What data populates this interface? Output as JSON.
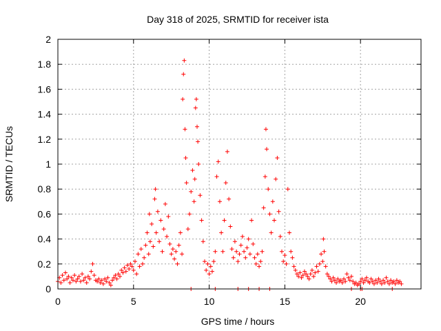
{
  "colors": {
    "series": "#ff0000",
    "grid": "#a0a0a0",
    "axis": "#000000",
    "background": "#ffffff"
  },
  "chart_data": {
    "type": "scatter",
    "title": "Day 318 of 2025, SRMTID for receiver ista",
    "xlabel": "GPS time / hours",
    "ylabel": "SRMTID / TECUs",
    "xlim": [
      0,
      24
    ],
    "ylim": [
      0,
      2
    ],
    "xticks": [
      0,
      5,
      10,
      15,
      20
    ],
    "xtick_labels": [
      "0",
      "5",
      "10",
      "15",
      "20"
    ],
    "yticks": [
      0,
      0.2,
      0.4,
      0.6,
      0.8,
      1,
      1.2,
      1.4,
      1.6,
      1.8,
      2
    ],
    "ytick_labels": [
      "0",
      "0.2",
      "0.4",
      "0.6",
      "0.8",
      "1",
      "1.2",
      "1.4",
      "1.6",
      "1.8",
      "2"
    ],
    "grid": true,
    "marker": "plus",
    "series": [
      {
        "name": "SRMTID",
        "points": [
          [
            0.0,
            0.06
          ],
          [
            0.1,
            0.09
          ],
          [
            0.2,
            0.05
          ],
          [
            0.3,
            0.11
          ],
          [
            0.4,
            0.07
          ],
          [
            0.5,
            0.13
          ],
          [
            0.6,
            0.08
          ],
          [
            0.7,
            0.1
          ],
          [
            0.8,
            0.05
          ],
          [
            0.9,
            0.09
          ],
          [
            1.0,
            0.07
          ],
          [
            1.1,
            0.11
          ],
          [
            1.2,
            0.06
          ],
          [
            1.3,
            0.08
          ],
          [
            1.4,
            0.1
          ],
          [
            1.5,
            0.06
          ],
          [
            1.6,
            0.12
          ],
          [
            1.7,
            0.07
          ],
          [
            1.8,
            0.09
          ],
          [
            1.9,
            0.05
          ],
          [
            2.0,
            0.1
          ],
          [
            2.1,
            0.08
          ],
          [
            2.2,
            0.14
          ],
          [
            2.3,
            0.2
          ],
          [
            2.4,
            0.11
          ],
          [
            2.5,
            0.07
          ],
          [
            2.6,
            0.06
          ],
          [
            2.7,
            0.08
          ],
          [
            2.8,
            0.05
          ],
          [
            2.9,
            0.07
          ],
          [
            3.0,
            0.04
          ],
          [
            3.1,
            0.08
          ],
          [
            3.2,
            0.06
          ],
          [
            3.3,
            0.09
          ],
          [
            3.4,
            0.05
          ],
          [
            3.5,
            0.03
          ],
          [
            3.6,
            0.07
          ],
          [
            3.7,
            0.09
          ],
          [
            3.8,
            0.11
          ],
          [
            3.9,
            0.08
          ],
          [
            4.0,
            0.12
          ],
          [
            4.1,
            0.1
          ],
          [
            4.2,
            0.15
          ],
          [
            4.3,
            0.13
          ],
          [
            4.4,
            0.17
          ],
          [
            4.5,
            0.14
          ],
          [
            4.6,
            0.19
          ],
          [
            4.7,
            0.16
          ],
          [
            4.8,
            0.2
          ],
          [
            4.9,
            0.18
          ],
          [
            5.0,
            0.15
          ],
          [
            5.1,
            0.22
          ],
          [
            5.2,
            0.12
          ],
          [
            5.3,
            0.28
          ],
          [
            5.4,
            0.18
          ],
          [
            5.5,
            0.32
          ],
          [
            5.6,
            0.2
          ],
          [
            5.7,
            0.25
          ],
          [
            5.8,
            0.35
          ],
          [
            5.9,
            0.45
          ],
          [
            6.0,
            0.28
          ],
          [
            6.05,
            0.6
          ],
          [
            6.1,
            0.38
          ],
          [
            6.2,
            0.52
          ],
          [
            6.3,
            0.34
          ],
          [
            6.4,
            0.72
          ],
          [
            6.45,
            0.8
          ],
          [
            6.5,
            0.45
          ],
          [
            6.6,
            0.62
          ],
          [
            6.7,
            0.38
          ],
          [
            6.8,
            0.55
          ],
          [
            6.9,
            0.3
          ],
          [
            7.0,
            0.48
          ],
          [
            7.1,
            0.68
          ],
          [
            7.2,
            0.42
          ],
          [
            7.3,
            0.58
          ],
          [
            7.4,
            0.36
          ],
          [
            7.5,
            0.28
          ],
          [
            7.6,
            0.32
          ],
          [
            7.7,
            0.24
          ],
          [
            7.8,
            0.3
          ],
          [
            7.9,
            0.2
          ],
          [
            8.0,
            0.35
          ],
          [
            8.1,
            0.45
          ],
          [
            8.2,
            0.28
          ],
          [
            8.25,
            1.52
          ],
          [
            8.3,
            1.72
          ],
          [
            8.35,
            1.83
          ],
          [
            8.4,
            1.28
          ],
          [
            8.45,
            1.05
          ],
          [
            8.5,
            0.85
          ],
          [
            8.6,
            0.48
          ],
          [
            8.7,
            0.6
          ],
          [
            8.8,
            0.78
          ],
          [
            8.9,
            0.95
          ],
          [
            9.0,
            0.7
          ],
          [
            9.05,
            0.88
          ],
          [
            9.1,
            1.45
          ],
          [
            9.15,
            1.52
          ],
          [
            9.2,
            1.3
          ],
          [
            9.25,
            1.18
          ],
          [
            9.3,
            1.0
          ],
          [
            9.4,
            0.75
          ],
          [
            9.5,
            0.55
          ],
          [
            9.6,
            0.38
          ],
          [
            9.7,
            0.22
          ],
          [
            9.8,
            0.15
          ],
          [
            9.9,
            0.2
          ],
          [
            10.0,
            0.12
          ],
          [
            10.1,
            0.18
          ],
          [
            10.2,
            0.14
          ],
          [
            10.3,
            0.22
          ],
          [
            10.4,
            0.3
          ],
          [
            10.5,
            0.9
          ],
          [
            10.6,
            1.02
          ],
          [
            10.7,
            0.7
          ],
          [
            10.8,
            0.45
          ],
          [
            10.9,
            0.3
          ],
          [
            11.0,
            0.55
          ],
          [
            11.1,
            0.85
          ],
          [
            11.2,
            1.1
          ],
          [
            11.3,
            0.72
          ],
          [
            11.4,
            0.5
          ],
          [
            11.5,
            0.32
          ],
          [
            11.6,
            0.25
          ],
          [
            11.7,
            0.38
          ],
          [
            11.8,
            0.3
          ],
          [
            11.9,
            0.22
          ],
          [
            12.0,
            0.28
          ],
          [
            12.1,
            0.35
          ],
          [
            12.2,
            0.42
          ],
          [
            12.3,
            0.3
          ],
          [
            12.4,
            0.25
          ],
          [
            12.5,
            0.33
          ],
          [
            12.6,
            0.4
          ],
          [
            12.7,
            0.28
          ],
          [
            12.8,
            0.55
          ],
          [
            12.9,
            0.36
          ],
          [
            13.0,
            0.25
          ],
          [
            13.1,
            0.2
          ],
          [
            13.2,
            0.28
          ],
          [
            13.3,
            0.18
          ],
          [
            13.4,
            0.22
          ],
          [
            13.5,
            0.3
          ],
          [
            13.6,
            0.65
          ],
          [
            13.7,
            0.9
          ],
          [
            13.75,
            1.28
          ],
          [
            13.8,
            1.12
          ],
          [
            13.9,
            0.8
          ],
          [
            14.0,
            0.6
          ],
          [
            14.1,
            0.45
          ],
          [
            14.2,
            0.7
          ],
          [
            14.3,
            0.55
          ],
          [
            14.4,
            0.88
          ],
          [
            14.5,
            1.05
          ],
          [
            14.6,
            0.62
          ],
          [
            14.7,
            0.42
          ],
          [
            14.8,
            0.3
          ],
          [
            14.9,
            0.22
          ],
          [
            15.0,
            0.27
          ],
          [
            15.1,
            0.2
          ],
          [
            15.2,
            0.8
          ],
          [
            15.3,
            0.45
          ],
          [
            15.4,
            0.3
          ],
          [
            15.5,
            0.25
          ],
          [
            15.6,
            0.18
          ],
          [
            15.7,
            0.15
          ],
          [
            15.8,
            0.12
          ],
          [
            15.9,
            0.1
          ],
          [
            16.0,
            0.13
          ],
          [
            16.1,
            0.09
          ],
          [
            16.2,
            0.11
          ],
          [
            16.3,
            0.14
          ],
          [
            16.4,
            0.12
          ],
          [
            16.5,
            0.1
          ],
          [
            16.6,
            0.08
          ],
          [
            16.7,
            0.12
          ],
          [
            16.8,
            0.15
          ],
          [
            16.9,
            0.1
          ],
          [
            17.0,
            0.13
          ],
          [
            17.1,
            0.18
          ],
          [
            17.2,
            0.14
          ],
          [
            17.3,
            0.2
          ],
          [
            17.4,
            0.28
          ],
          [
            17.5,
            0.22
          ],
          [
            17.55,
            0.4
          ],
          [
            17.6,
            0.3
          ],
          [
            17.7,
            0.18
          ],
          [
            17.8,
            0.12
          ],
          [
            17.9,
            0.1
          ],
          [
            18.0,
            0.08
          ],
          [
            18.1,
            0.06
          ],
          [
            18.2,
            0.09
          ],
          [
            18.3,
            0.07
          ],
          [
            18.4,
            0.05
          ],
          [
            18.5,
            0.08
          ],
          [
            18.6,
            0.06
          ],
          [
            18.7,
            0.07
          ],
          [
            18.8,
            0.05
          ],
          [
            18.9,
            0.08
          ],
          [
            19.0,
            0.06
          ],
          [
            19.1,
            0.12
          ],
          [
            19.2,
            0.09
          ],
          [
            19.3,
            0.07
          ],
          [
            19.4,
            0.1
          ],
          [
            19.5,
            0.06
          ],
          [
            19.6,
            0.04
          ],
          [
            19.7,
            0.05
          ],
          [
            19.8,
            0.03
          ],
          [
            19.9,
            0.04
          ],
          [
            20.0,
            0.06
          ],
          [
            20.1,
            0.08
          ],
          [
            20.2,
            0.05
          ],
          [
            20.3,
            0.07
          ],
          [
            20.4,
            0.09
          ],
          [
            20.5,
            0.06
          ],
          [
            20.6,
            0.05
          ],
          [
            20.7,
            0.08
          ],
          [
            20.8,
            0.06
          ],
          [
            20.9,
            0.04
          ],
          [
            21.0,
            0.07
          ],
          [
            21.1,
            0.05
          ],
          [
            21.2,
            0.08
          ],
          [
            21.3,
            0.06
          ],
          [
            21.4,
            0.04
          ],
          [
            21.5,
            0.07
          ],
          [
            21.6,
            0.05
          ],
          [
            21.7,
            0.09
          ],
          [
            21.8,
            0.06
          ],
          [
            21.9,
            0.04
          ],
          [
            22.0,
            0.07
          ],
          [
            22.1,
            0.05
          ],
          [
            22.2,
            0.06
          ],
          [
            22.3,
            0.04
          ],
          [
            22.4,
            0.07
          ],
          [
            22.5,
            0.05
          ],
          [
            22.6,
            0.06
          ],
          [
            22.7,
            0.04
          ],
          [
            8.8,
            0.0
          ],
          [
            10.4,
            0.0
          ],
          [
            11.9,
            0.0
          ],
          [
            12.6,
            0.0
          ],
          [
            13.3,
            0.0
          ],
          [
            14.0,
            0.0
          ],
          [
            19.4,
            0.0
          ],
          [
            20.0,
            0.0
          ],
          [
            20.1,
            0.0
          ],
          [
            22.1,
            0.0
          ]
        ]
      }
    ]
  }
}
